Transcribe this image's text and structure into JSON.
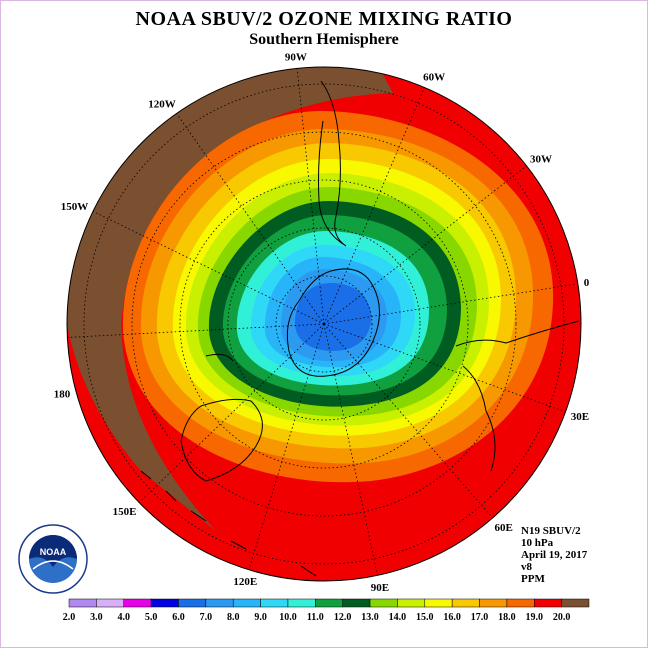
{
  "title": "NOAA SBUV/2 OZONE MIXING RATIO",
  "subtitle": "Southern Hemisphere",
  "longitude_labels": [
    {
      "text": "90W",
      "lon": -90
    },
    {
      "text": "60W",
      "lon": -60
    },
    {
      "text": "30W",
      "lon": -30
    },
    {
      "text": "0",
      "lon": 0
    },
    {
      "text": "30E",
      "lon": 30
    },
    {
      "text": "60E",
      "lon": 60
    },
    {
      "text": "90E",
      "lon": 90
    },
    {
      "text": "120E",
      "lon": 120
    },
    {
      "text": "150E",
      "lon": 150
    },
    {
      "text": "180",
      "lon": 180
    },
    {
      "text": "150W",
      "lon": -150
    },
    {
      "text": "120W",
      "lon": -120
    }
  ],
  "info": {
    "instrument": "N19 SBUV/2",
    "level": "10 hPa",
    "date": "April 19, 2017",
    "version": "v8",
    "units": "PPM"
  },
  "colorbar": {
    "labels": [
      "2.0",
      "3.0",
      "4.0",
      "5.0",
      "6.0",
      "7.0",
      "8.0",
      "9.0",
      "10.0",
      "11.0",
      "12.0",
      "13.0",
      "14.0",
      "15.0",
      "16.0",
      "17.0",
      "18.0",
      "19.0",
      "20.0"
    ],
    "colors": [
      "#b088f0",
      "#d8b0f8",
      "#e800e8",
      "#0000e0",
      "#1a6ee8",
      "#2c9af0",
      "#28b4f8",
      "#30d8f8",
      "#30f0d8",
      "#10a040",
      "#005c20",
      "#88d800",
      "#c8f000",
      "#f8f800",
      "#f8c800",
      "#f89800",
      "#f86800",
      "#f00000",
      "#7a5030"
    ]
  },
  "logo": {
    "text": "NOAA"
  }
}
